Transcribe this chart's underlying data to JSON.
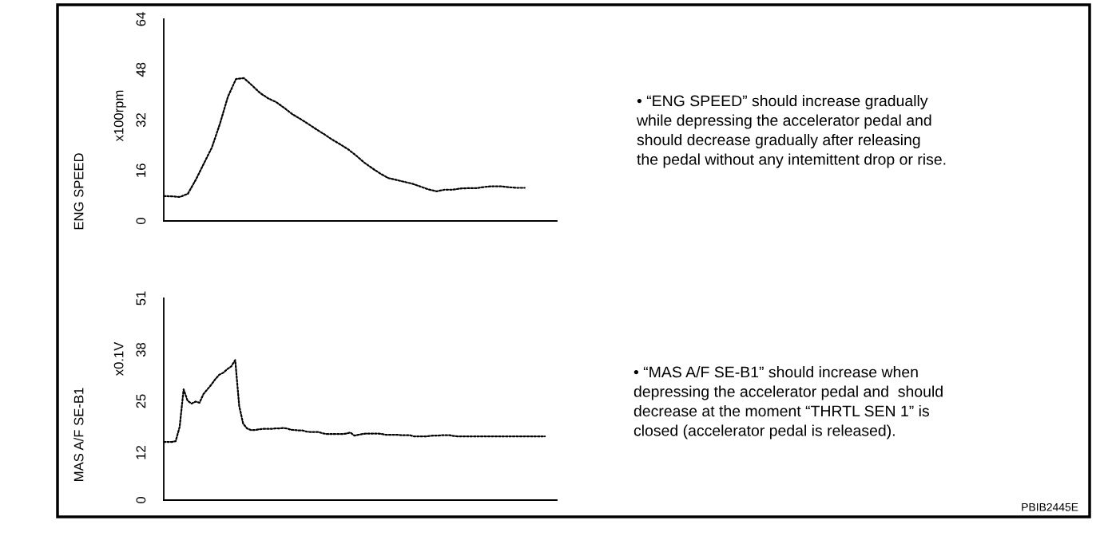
{
  "chart_data": [
    {
      "type": "line",
      "ylabel": "ENG SPEED\nx100rpm",
      "line_style": "dotted",
      "tick_labels": "y",
      "categories": [
        null,
        null,
        null,
        null,
        null,
        null,
        null,
        null,
        null,
        null,
        null,
        null,
        null,
        null,
        null,
        null,
        null,
        null,
        null,
        null,
        null,
        null,
        null,
        null,
        null,
        null,
        null,
        null,
        null,
        null,
        null,
        null,
        null,
        null,
        null,
        null,
        null,
        null,
        null,
        null,
        null,
        null,
        null,
        null,
        null,
        null,
        null,
        null,
        null,
        null
      ],
      "series": [
        {
          "color": "#000000",
          "values": [
            7.9,
            7.8,
            7.6,
            8.6,
            13.1,
            18.2,
            23.3,
            30.8,
            39.4,
            45.0,
            45.3,
            43.0,
            40.6,
            38.9,
            37.7,
            35.9,
            33.9,
            32.4,
            30.8,
            29.1,
            27.5,
            25.8,
            24.3,
            22.7,
            20.7,
            18.5,
            16.7,
            15.0,
            13.6,
            13.0,
            12.4,
            11.8,
            10.9,
            10.0,
            9.4,
            9.9,
            9.9,
            10.3,
            10.4,
            10.4,
            10.8,
            11.0,
            11.0,
            10.7,
            10.5,
            10.5,
            null,
            null,
            null,
            null
          ]
        }
      ],
      "ylim": [
        0,
        64
      ],
      "yticks": [
        0,
        16,
        32,
        48,
        64
      ],
      "annotations": [
        "• “ENG SPEED” should increase gradually\nwhile depressing the accelerator pedal and\nshould decrease gradually after releasing\nthe pedal without any intemittent drop or rise."
      ]
    },
    {
      "type": "line",
      "ylabel": "MAS A/F SE-B1\nx0.1V",
      "line_style": "dotted",
      "tick_labels": "y",
      "categories": [
        null,
        null,
        null,
        null,
        null,
        null,
        null,
        null,
        null,
        null,
        null,
        null,
        null,
        null,
        null,
        null,
        null,
        null,
        null,
        null,
        null,
        null,
        null,
        null,
        null,
        null,
        null,
        null,
        null,
        null,
        null,
        null,
        null,
        null,
        null,
        null,
        null,
        null,
        null,
        null,
        null,
        null,
        null,
        null,
        null,
        null,
        null,
        null,
        null,
        null,
        null,
        null,
        null,
        null,
        null,
        null,
        null,
        null,
        null,
        null,
        null,
        null,
        null,
        null,
        null,
        null,
        null,
        null,
        null,
        null,
        null,
        null,
        null,
        null,
        null,
        null,
        null,
        null,
        null,
        null,
        null,
        null,
        null,
        null,
        null,
        null,
        null,
        null,
        null,
        null,
        null,
        null,
        null,
        null,
        null,
        null,
        null,
        null,
        null,
        null
      ],
      "series": [
        {
          "color": "#000000",
          "values": [
            14.7,
            14.7,
            14.7,
            14.9,
            18.5,
            28.0,
            25.1,
            24.4,
            24.9,
            24.6,
            26.8,
            28.0,
            29.2,
            30.6,
            31.7,
            32.2,
            33.1,
            33.8,
            35.4,
            23.8,
            19.3,
            18.1,
            17.7,
            17.7,
            17.9,
            18.0,
            18.0,
            18.0,
            18.1,
            18.1,
            18.2,
            18.1,
            17.8,
            17.7,
            17.6,
            17.6,
            17.3,
            17.2,
            17.2,
            17.2,
            16.9,
            16.7,
            16.7,
            16.7,
            16.7,
            16.7,
            16.8,
            17.1,
            16.3,
            16.5,
            16.7,
            16.8,
            16.8,
            16.8,
            16.8,
            16.7,
            16.5,
            16.5,
            16.5,
            16.5,
            16.4,
            16.4,
            16.4,
            16.1,
            16.1,
            16.1,
            16.1,
            16.2,
            16.3,
            16.3,
            16.4,
            16.4,
            16.4,
            16.2,
            16.1,
            16.1,
            16.1,
            16.1,
            16.1,
            16.1,
            16.1,
            16.1,
            16.1,
            16.1,
            16.1,
            16.1,
            16.1,
            16.1,
            16.1,
            16.1,
            16.1,
            16.1,
            16.1,
            16.1,
            16.1,
            16.1,
            16.1,
            null,
            null,
            null
          ]
        }
      ],
      "ylim": [
        0,
        51
      ],
      "yticks": [
        0,
        12,
        25,
        38,
        51
      ],
      "annotations": [
        "• “MAS A/F SE-B1” should increase when\ndepressing the accelerator pedal and  should\ndecrease at the moment “THRTL SEN 1” is\nclosed (accelerator pedal is released).",
        "PBIB2445E"
      ]
    }
  ]
}
